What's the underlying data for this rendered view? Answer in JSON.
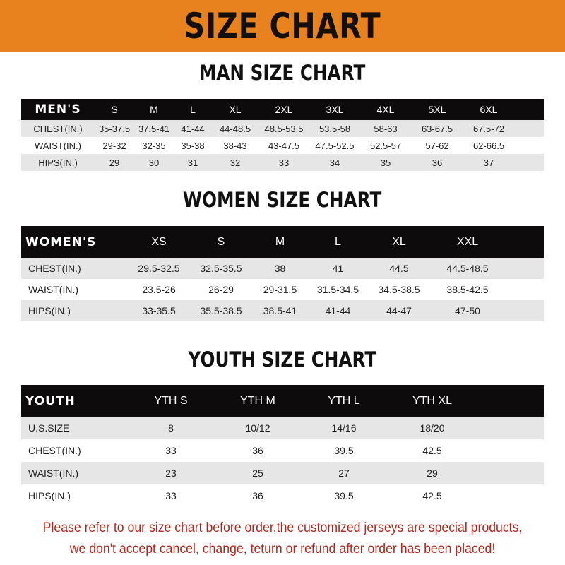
{
  "banner": {
    "title": "SIZE CHART",
    "color": "#e8821e"
  },
  "men": {
    "title": "MAN SIZE CHART",
    "header": [
      "MEN'S",
      "S",
      "M",
      "L",
      "XL",
      "2XL",
      "3XL",
      "4XL",
      "5XL",
      "6XL"
    ],
    "rows": [
      [
        "CHEST(IN.)",
        "35-37.5",
        "37.5-41",
        "41-44",
        "44-48.5",
        "48.5-53.5",
        "53.5-58",
        "58-63",
        "63-67.5",
        "67.5-72"
      ],
      [
        "WAIST(IN.)",
        "29-32",
        "32-35",
        "35-38",
        "38-43",
        "43-47.5",
        "47.5-52.5",
        "52.5-57",
        "57-62",
        "62-66.5"
      ],
      [
        "HIPS(IN.)",
        "29",
        "30",
        "31",
        "32",
        "33",
        "34",
        "35",
        "36",
        "37"
      ]
    ]
  },
  "women": {
    "title": "WOMEN SIZE CHART",
    "header": [
      "WOMEN'S",
      "XS",
      "S",
      "M",
      "L",
      "XL",
      "XXL"
    ],
    "rows": [
      [
        "CHEST(IN.)",
        "29.5-32.5",
        "32.5-35.5",
        "38",
        "41",
        "44.5",
        "44.5-48.5"
      ],
      [
        "WAIST(IN.)",
        "23.5-26",
        "26-29",
        "29-31.5",
        "31.5-34.5",
        "34.5-38.5",
        "38.5-42.5"
      ],
      [
        "HIPS(IN.)",
        "33-35.5",
        "35.5-38.5",
        "38.5-41",
        "41-44",
        "44-47",
        "47-50"
      ]
    ]
  },
  "youth": {
    "title": "YOUTH SIZE CHART",
    "header": [
      "YOUTH",
      "YTH S",
      "YTH M",
      "YTH L",
      "YTH XL"
    ],
    "rows": [
      [
        "U.S.SIZE",
        "8",
        "10/12",
        "14/16",
        "18/20"
      ],
      [
        "CHEST(IN.)",
        "33",
        "36",
        "39.5",
        "42.5"
      ],
      [
        "WAIST(IN.)",
        "23",
        "25",
        "27",
        "29"
      ],
      [
        "HIPS(IN.)",
        "33",
        "36",
        "39.5",
        "42.5"
      ]
    ]
  },
  "note": {
    "line1": "Please refer to our size chart before order,the customized jerseys are special products,",
    "line2": "we don't accept cancel, change, teturn or refund after order has been placed!",
    "color": "#b3261e"
  }
}
